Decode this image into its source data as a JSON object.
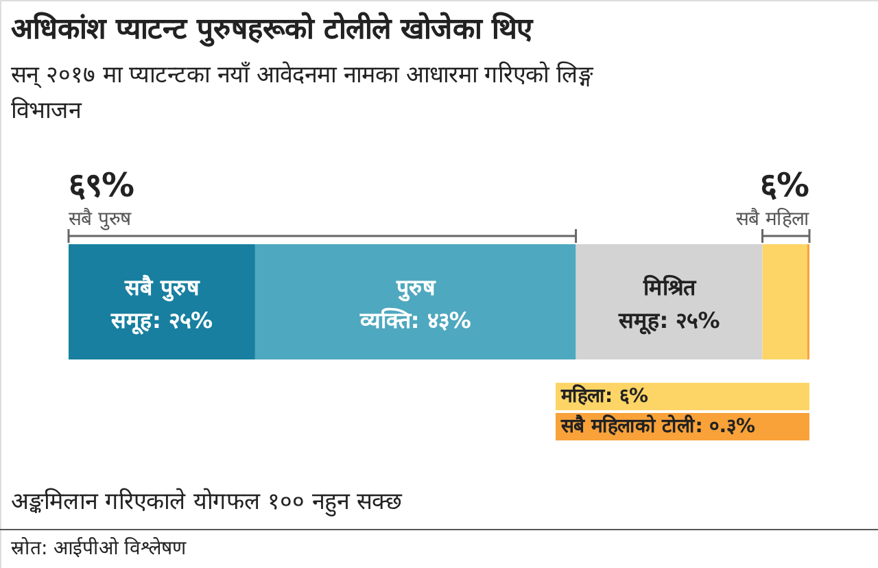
{
  "chart_data": {
    "type": "bar",
    "orientation": "horizontal",
    "stacked": true,
    "title": "अधिकांश प्याटन्ट पुरुषहरूको टोलीले खोजेका थिए",
    "subtitle": "सन् २०१७ मा प्याटन्टका नयाँ आवेदनमा नामका आधारमा गरिएको लिङ्ग विभाजन",
    "categories": [
      null
    ],
    "series": [
      {
        "name": "सबै पुरुष समूह:",
        "color": "#187fa0",
        "values": [
          25
        ],
        "value_labels": [
          "२५%"
        ]
      },
      {
        "name": "पुरुष व्यक्ति:",
        "color": "#4ea8bf",
        "values": [
          43
        ],
        "value_labels": [
          "४३%"
        ]
      },
      {
        "name": "मिश्रित समूह:",
        "color": "#d3d3d3",
        "values": [
          25
        ],
        "value_labels": [
          "२५%"
        ]
      },
      {
        "name": "महिला:",
        "color": "#fdd566",
        "values": [
          6
        ],
        "value_labels": [
          "६%"
        ]
      },
      {
        "name": "सबै महिलाको टोली:",
        "color": "#f9a23a",
        "values": [
          0.3
        ],
        "value_labels": [
          "०.३%"
        ]
      }
    ],
    "annotations": [
      "६९%",
      "सबै पुरुष",
      "६%",
      "सबै महिला",
      "अङ्कमिलान गरिएकाले योगफल १०० नहुन सक्छ",
      "स्रोत: आईपीओ विश्लेषण"
    ]
  }
}
